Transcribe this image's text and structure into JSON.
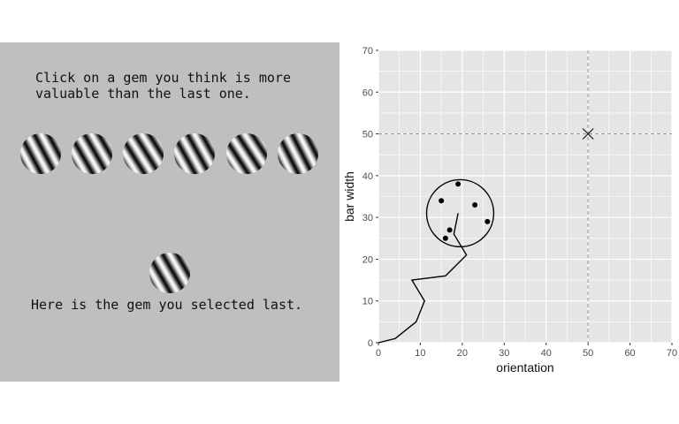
{
  "task": {
    "instruction": "Click on a gem you think is more\nvaluable than the last one.",
    "last_caption": "Here is the gem you selected last."
  },
  "gems": [
    {
      "name": "gem-1"
    },
    {
      "name": "gem-2"
    },
    {
      "name": "gem-3"
    },
    {
      "name": "gem-4"
    },
    {
      "name": "gem-5"
    },
    {
      "name": "gem-6"
    }
  ],
  "colors": {
    "stimulus_background": "#bfbfbf",
    "plot_panel": "#e5e5e5",
    "gridline": "#ffffff"
  },
  "chart_data": {
    "type": "scatter",
    "xlabel": "orientation",
    "ylabel": "bar width",
    "xlim": [
      0,
      70
    ],
    "ylim": [
      0,
      70
    ],
    "xticks": [
      0,
      10,
      20,
      30,
      40,
      50,
      60,
      70
    ],
    "yticks": [
      0,
      10,
      20,
      30,
      40,
      50,
      60,
      70
    ],
    "grid": true,
    "target": {
      "x": 50,
      "y": 50,
      "marker": "x",
      "reference_lines": "dashed"
    },
    "trajectory": [
      [
        0,
        0
      ],
      [
        4,
        1
      ],
      [
        9,
        5
      ],
      [
        11,
        10
      ],
      [
        8,
        15
      ],
      [
        16,
        16
      ],
      [
        21,
        21
      ],
      [
        18,
        26
      ],
      [
        19,
        31
      ]
    ],
    "points": [
      [
        15,
        34
      ],
      [
        19,
        38
      ],
      [
        23,
        33
      ],
      [
        26,
        29
      ],
      [
        17,
        27
      ],
      [
        16,
        25
      ]
    ],
    "circle": {
      "cx": 19.5,
      "cy": 31,
      "r": 8
    }
  }
}
